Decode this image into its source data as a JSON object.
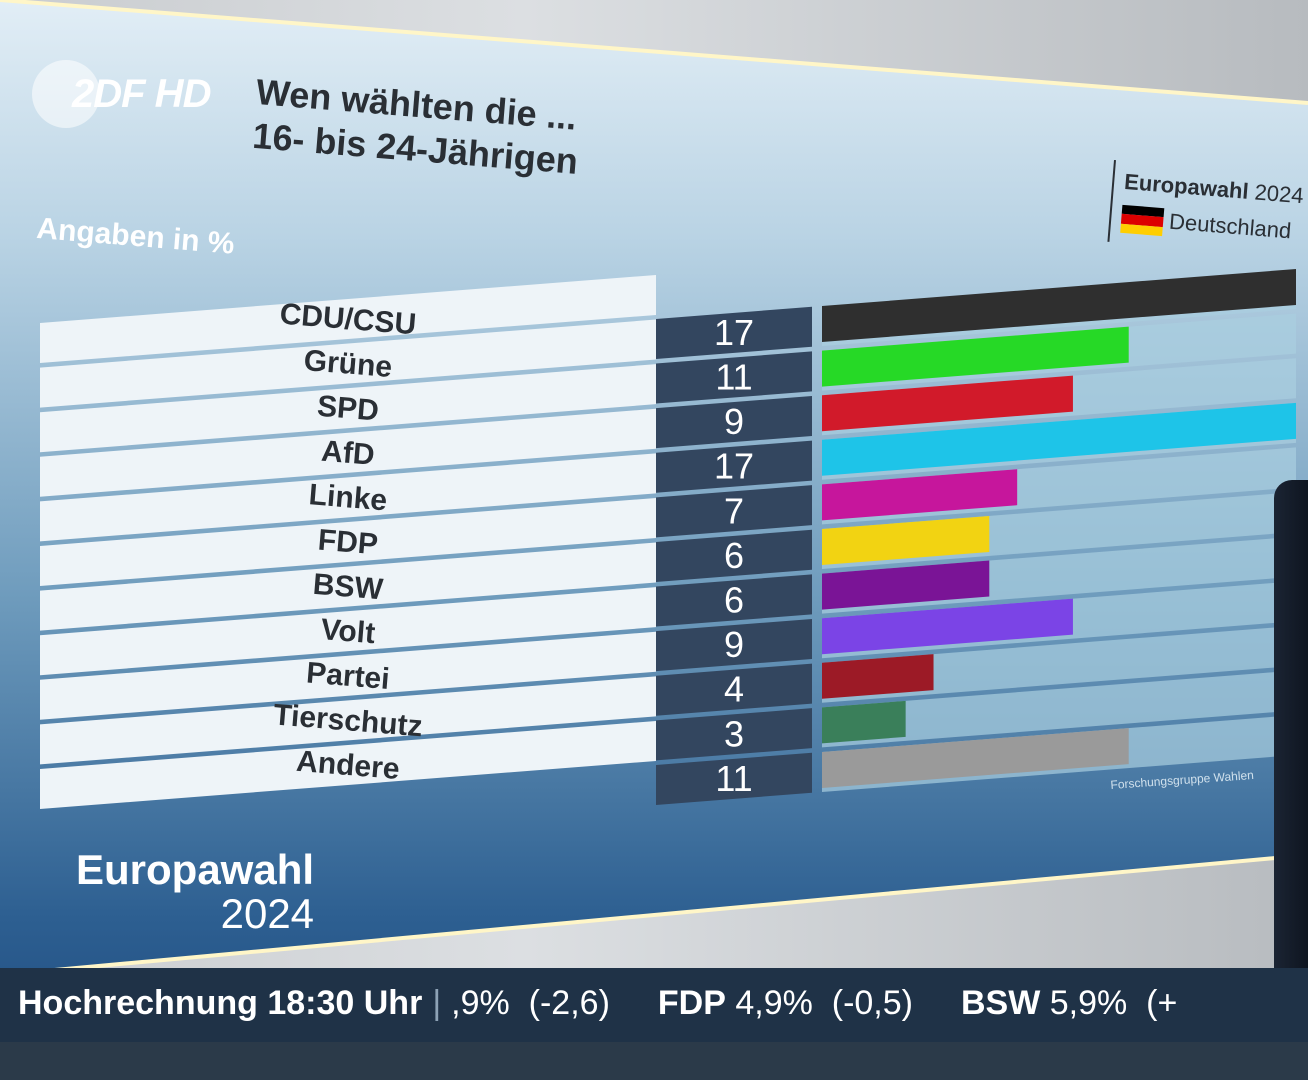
{
  "logo": {
    "text": "2DF HD"
  },
  "header": {
    "title_line1": "Wen wählten die ...",
    "title_line2": "16- bis 24-Jährigen",
    "unit_label": "Angaben in %"
  },
  "corner": {
    "title": "Europawahl",
    "year": "2024",
    "region": "Deutschland",
    "flag_colors": [
      "#000000",
      "#dd0000",
      "#ffce00"
    ]
  },
  "chart_data": {
    "type": "bar",
    "orientation": "horizontal",
    "categories": [
      "CDU/CSU",
      "Grüne",
      "SPD",
      "AfD",
      "Linke",
      "FDP",
      "BSW",
      "Volt",
      "Partei",
      "Tierschutz",
      "Andere"
    ],
    "values": [
      17,
      11,
      9,
      17,
      7,
      6,
      6,
      9,
      4,
      3,
      11
    ],
    "colors": [
      "#2f2f2f",
      "#26d926",
      "#d11a2a",
      "#1ec4e8",
      "#c6169c",
      "#f2d312",
      "#7a1496",
      "#7b44e6",
      "#9c1a26",
      "#3a7f5a",
      "#9a9a9a"
    ],
    "value_labels": [
      "17",
      "11",
      "9",
      "17",
      "7",
      "6",
      "6",
      "9",
      "4",
      "3",
      "11"
    ],
    "xlim": [
      0,
      17
    ],
    "source": "Forschungsgruppe Wahlen"
  },
  "brand": {
    "name": "Europawahl",
    "year": "2024"
  },
  "ticker": {
    "label": "Hochrechnung 18:30 Uhr",
    "item1_value": ",9%",
    "item1_change": "(-2,6)",
    "item2_party": "FDP",
    "item2_value": "4,9%",
    "item2_change": "(-0,5)",
    "item3_party": "BSW",
    "item3_value": "5,9%",
    "item3_change": "(+"
  }
}
